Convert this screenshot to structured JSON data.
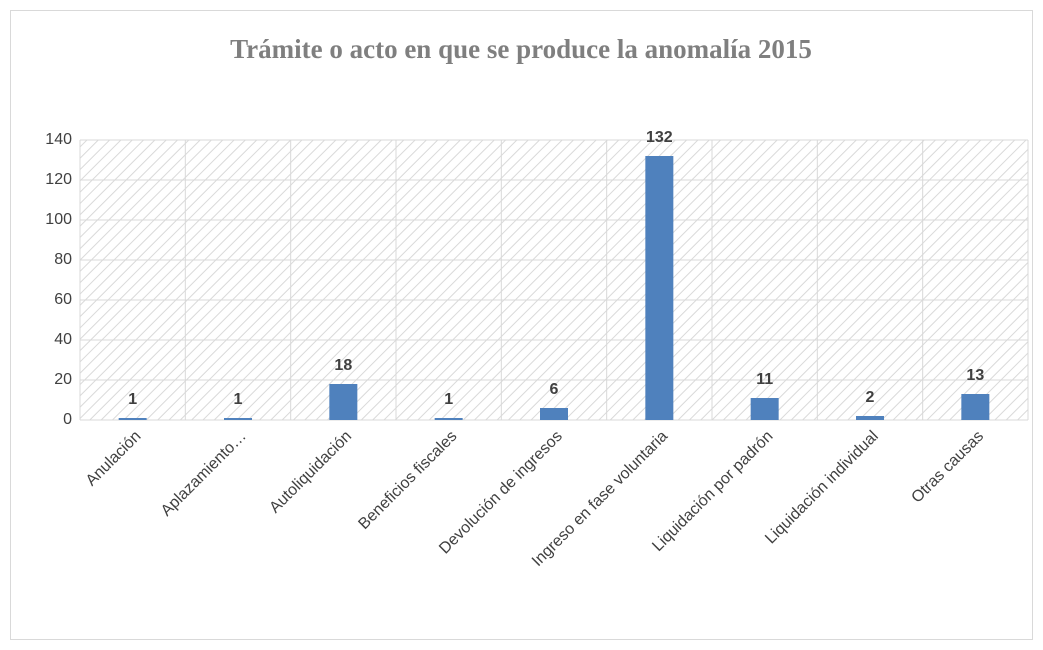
{
  "chart_data": {
    "type": "bar",
    "title": "Trámite o acto en que se produce la anomalía 2015",
    "categories": [
      "Anulación",
      "Aplazamiento…",
      "Autoliquidación",
      "Beneficios fiscales",
      "Devolución de ingresos",
      "Ingreso en fase voluntaria",
      "Liquidación por padrón",
      "Liquidación individual",
      "Otras causas"
    ],
    "values": [
      1,
      1,
      18,
      1,
      6,
      132,
      11,
      2,
      13
    ],
    "color": "#4f81bd",
    "ylim": [
      0,
      140
    ],
    "yticks": [
      0,
      20,
      40,
      60,
      80,
      100,
      120,
      140
    ],
    "grid": true
  }
}
